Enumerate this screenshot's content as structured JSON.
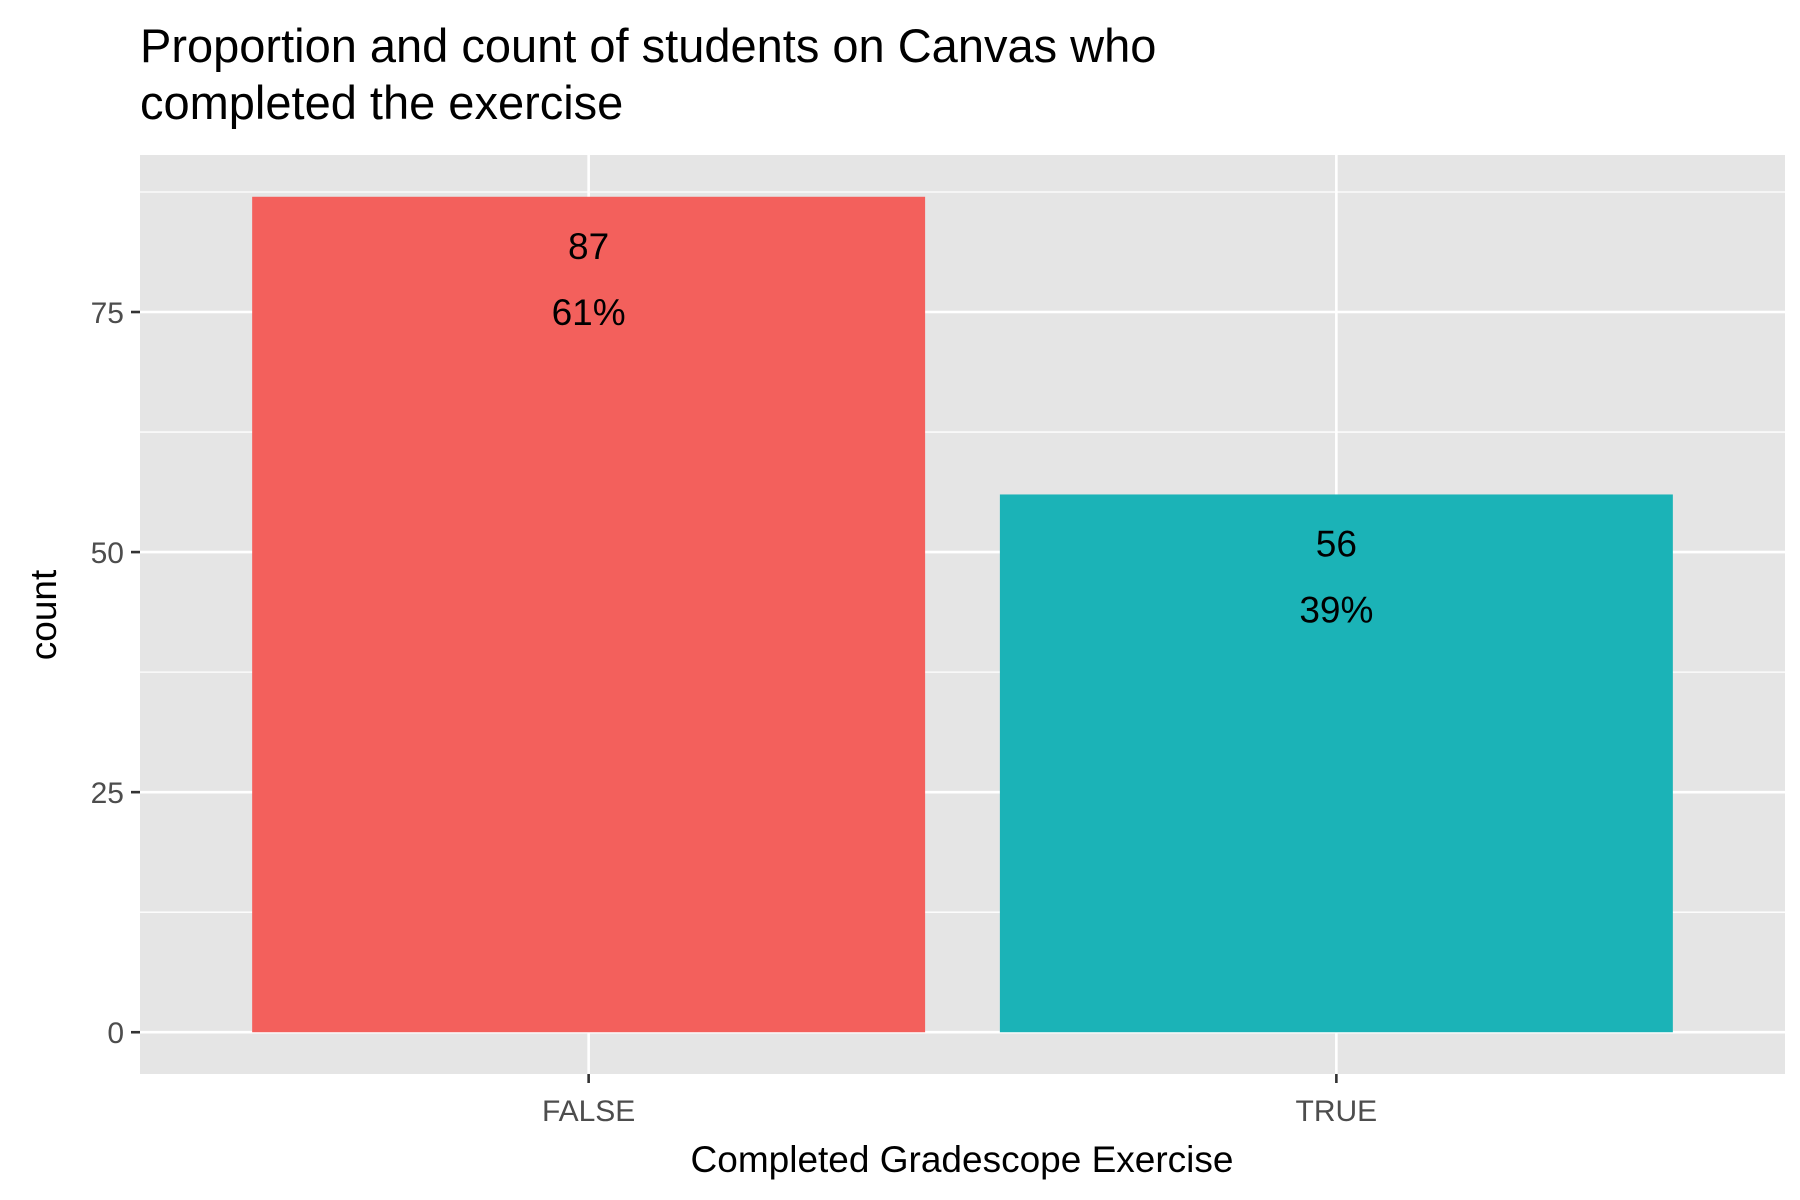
{
  "chart_data": {
    "type": "bar",
    "title_lines": [
      "Proportion and count of students on Canvas who",
      "completed the exercise"
    ],
    "xlabel": "Completed Gradescope Exercise",
    "ylabel": "count",
    "categories": [
      "FALSE",
      "TRUE"
    ],
    "values": [
      87,
      56
    ],
    "count_labels": [
      "87",
      "56"
    ],
    "percent_labels": [
      "61%",
      "39%"
    ],
    "colors": [
      "#F3605C",
      "#1BB3B7"
    ],
    "panel_background": "#E5E5E5",
    "ylim": [
      -4.35,
      91.35
    ],
    "y_major_ticks": [
      0,
      25,
      50,
      75
    ],
    "y_tick_labels": [
      "0",
      "25",
      "50",
      "75"
    ],
    "y_minor_ticks": [
      12.5,
      37.5,
      62.5,
      87.5
    ],
    "grid": true,
    "legend": "none"
  }
}
